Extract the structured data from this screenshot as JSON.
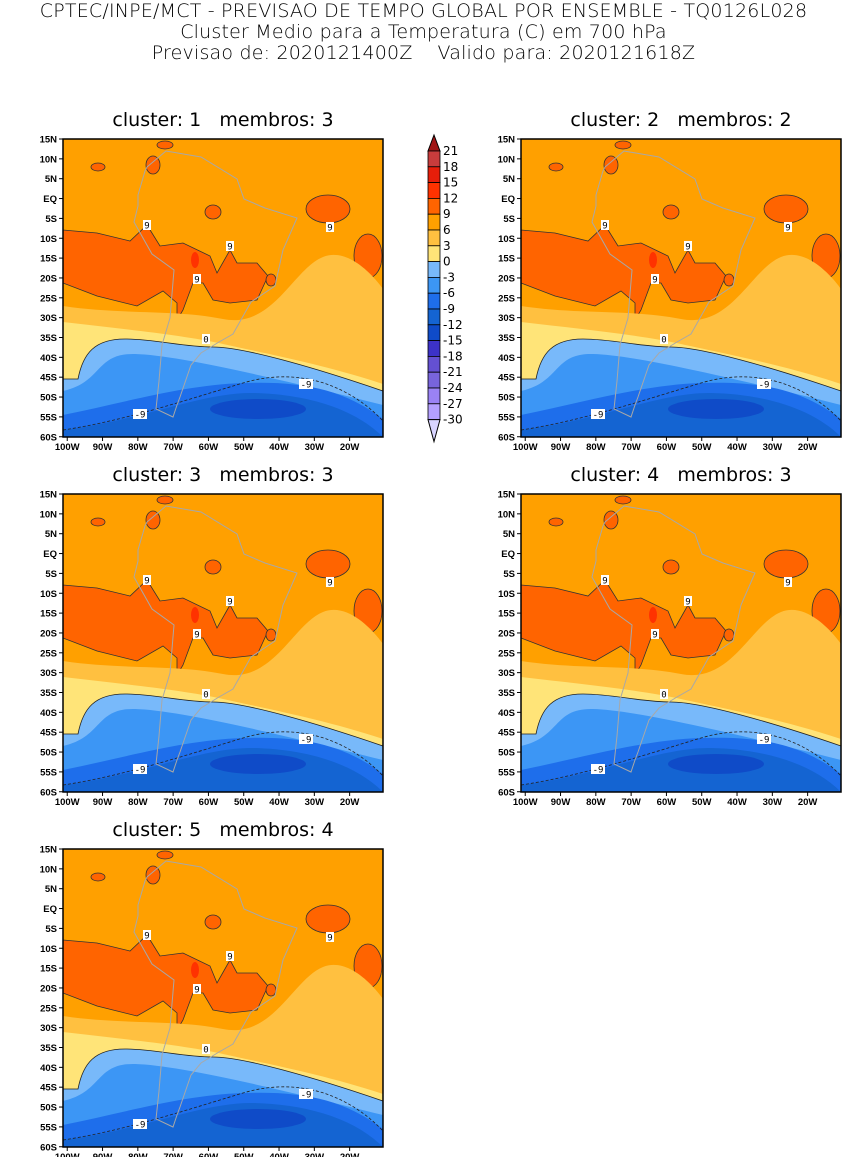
{
  "header": {
    "line1": "CPTEC/INPE/MCT - PREVISAO DE TEMPO GLOBAL POR ENSEMBLE - TQ0126L028",
    "line2": "Cluster Medio para a Temperatura (C) em 700 hPa",
    "line3": "Previsao de: 2020121400Z    Valido para: 2020121618Z"
  },
  "panels": [
    {
      "title": "cluster: 1   membros: 3",
      "contour_labels": [
        "9",
        "9",
        "9",
        "9",
        "0",
        "-9",
        "-9"
      ]
    },
    {
      "title": "cluster: 2   membros: 2",
      "contour_labels": [
        "9",
        "9",
        "9",
        "9",
        "0",
        "-9",
        "-9"
      ]
    },
    {
      "title": "cluster: 3   membros: 3",
      "contour_labels": [
        "9",
        "9",
        "9",
        "9",
        "0",
        "-9",
        "-9"
      ]
    },
    {
      "title": "cluster: 4   membros: 3",
      "contour_labels": [
        "9",
        "9",
        "9",
        "9",
        "0",
        "-9",
        "-9"
      ]
    },
    {
      "title": "cluster: 5   membros: 4",
      "contour_labels": [
        "9",
        "9",
        "9",
        "9",
        "0",
        "-9",
        "-9"
      ]
    }
  ],
  "axes": {
    "lat_ticks": [
      "15N",
      "10N",
      "5N",
      "EQ",
      "5S",
      "10S",
      "15S",
      "20S",
      "25S",
      "30S",
      "35S",
      "40S",
      "45S",
      "50S",
      "55S",
      "60S"
    ],
    "lon_ticks": [
      "100W",
      "90W",
      "80W",
      "70W",
      "60W",
      "50W",
      "40W",
      "30W",
      "20W"
    ]
  },
  "colorbar": {
    "labels": [
      "21",
      "18",
      "15",
      "12",
      "9",
      "6",
      "3",
      "0",
      "-3",
      "-6",
      "-9",
      "-12",
      "-15",
      "-18",
      "-21",
      "-24",
      "-27",
      "-30"
    ],
    "colors": [
      "#c83c3c",
      "#e61e0a",
      "#ff3200",
      "#ff6400",
      "#ffa000",
      "#ffc040",
      "#ffe478",
      "#78b9fa",
      "#3c96f5",
      "#1e6eeb",
      "#1464d2",
      "#0f4bc8",
      "#3c32c8",
      "#6450d2",
      "#7864dc",
      "#9a82f5",
      "#b4a0ff"
    ],
    "over_color": "#a01414",
    "under_color": "#d8d4ff"
  }
}
